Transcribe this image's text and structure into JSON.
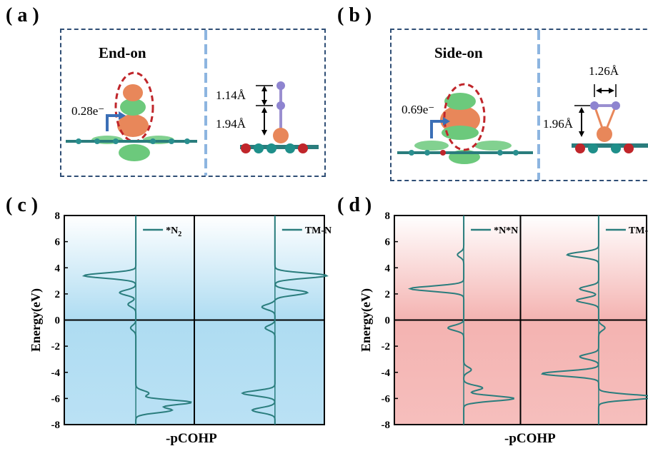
{
  "panels": {
    "a": {
      "label": "( a )",
      "mode": "End-on",
      "charge": "0.28e⁻",
      "bond_top": "1.14Å",
      "bond_bottom": "1.94Å"
    },
    "b": {
      "label": "( b )",
      "mode": "Side-on",
      "charge": "0.69e⁻",
      "bond_nn": "1.26Å",
      "bond_height": "1.96Å"
    },
    "c": {
      "label": "( c )",
      "ylabel": "Energy(eV)",
      "xlabel": "-pCOHP",
      "legend_left": "*N",
      "legend_left_sub": "2",
      "legend_right": "TM-N"
    },
    "d": {
      "label": "( d )",
      "ylabel": "Energy(eV)",
      "xlabel": "-pCOHP",
      "legend_left": "*N*N",
      "legend_right": "TM-N"
    }
  },
  "colors": {
    "box_border": "#2f4e75",
    "divider": "#8db5e0",
    "curve": "#2a7d7d",
    "gradient_c": "#aedcf2",
    "gradient_d": "#f4b3b1",
    "iso_orange": "#e8875a",
    "iso_green": "#6cc97c",
    "arrow": "#3b6fb6",
    "ring_red": "#c0262b"
  },
  "chart_data": [
    {
      "type": "line",
      "panel": "c",
      "ylim": [
        -8,
        8
      ],
      "yticks": [
        -8,
        -6,
        -4,
        -2,
        0,
        2,
        4,
        6,
        8
      ],
      "ylabel": "Energy(eV)",
      "xlabel": "-pCOHP",
      "series": [
        {
          "name": "*N2",
          "peaks": [
            {
              "energy": 3.4,
              "value": -0.8
            },
            {
              "energy": 2.1,
              "value": -0.25
            },
            {
              "energy": 1.2,
              "value": -0.12
            },
            {
              "energy": -0.6,
              "value": -0.08
            },
            {
              "energy": -5.6,
              "value": 0.2
            },
            {
              "energy": -6.3,
              "value": 0.85
            },
            {
              "energy": -6.9,
              "value": 0.55
            }
          ]
        },
        {
          "name": "TM-N",
          "peaks": [
            {
              "energy": 3.4,
              "value": 0.8
            },
            {
              "energy": 2.1,
              "value": 0.5
            },
            {
              "energy": 1.0,
              "value": -0.2
            },
            {
              "energy": -0.6,
              "value": -0.15
            },
            {
              "energy": -5.6,
              "value": -0.5
            },
            {
              "energy": -6.9,
              "value": -0.35
            }
          ]
        }
      ]
    },
    {
      "type": "line",
      "panel": "d",
      "ylim": [
        -8,
        8
      ],
      "yticks": [
        -8,
        -6,
        -4,
        -2,
        0,
        2,
        4,
        6,
        8
      ],
      "ylabel": "Energy(eV)",
      "xlabel": "-pCOHP",
      "series": [
        {
          "name": "*N*N",
          "peaks": [
            {
              "energy": 5.0,
              "value": -0.1
            },
            {
              "energy": 2.4,
              "value": -0.85
            },
            {
              "energy": -0.6,
              "value": -0.25
            },
            {
              "energy": -3.8,
              "value": 0.12
            },
            {
              "energy": -5.2,
              "value": 0.3
            },
            {
              "energy": -6.0,
              "value": 0.8
            }
          ]
        },
        {
          "name": "TM-N",
          "peaks": [
            {
              "energy": 5.0,
              "value": -0.5
            },
            {
              "energy": 2.4,
              "value": -0.3
            },
            {
              "energy": 1.5,
              "value": -0.35
            },
            {
              "energy": -0.6,
              "value": 0.1
            },
            {
              "energy": -2.8,
              "value": -0.3
            },
            {
              "energy": -4.1,
              "value": -0.9
            },
            {
              "energy": -5.9,
              "value": 0.9
            }
          ]
        }
      ]
    }
  ]
}
